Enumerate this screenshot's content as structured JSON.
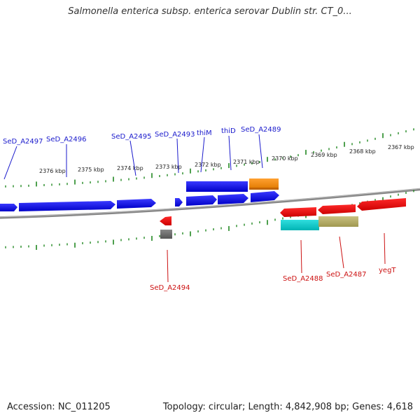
{
  "title": "Salmonella enterica subsp. enterica serovar Dublin str. CT_0...",
  "footer": {
    "accession": "Accession: NC_011205",
    "summary": "Topology: circular; Length: 4,842,908 bp; Genes: 4,618"
  },
  "colors": {
    "plus_label": "#1a1acc",
    "minus_label": "#cc1111",
    "tick": "#228822",
    "backbone": "#777777"
  },
  "kbp_labels": [
    "2376 kbp",
    "2375 kbp",
    "2374 kbp",
    "2373 kbp",
    "2372 kbp",
    "2371 kbp",
    "2370 kbp",
    "2369 kbp",
    "2368 kbp",
    "2367 kbp"
  ],
  "plus_genes": [
    "SeD_A2497",
    "SeD_A2496",
    "SeD_A2495",
    "SeD_A2493",
    "thiM",
    "thiD",
    "SeD_A2489"
  ],
  "minus_genes": [
    "SeD_A2494",
    "SeD_A2488",
    "SeD_A2487",
    "yegT"
  ]
}
